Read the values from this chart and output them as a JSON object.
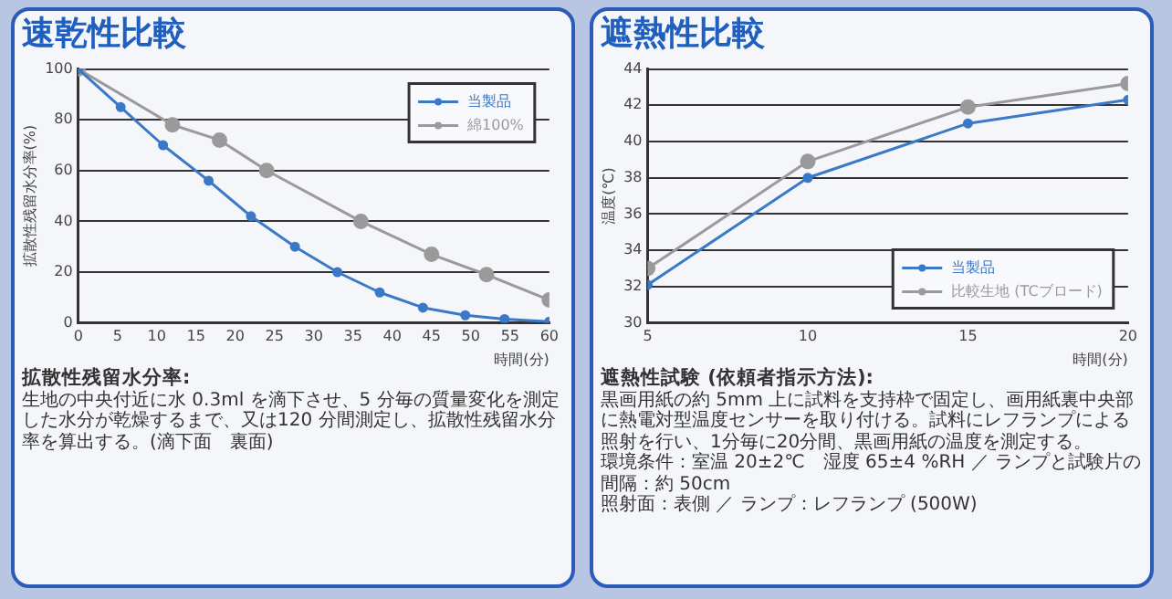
{
  "chart_data": [
    {
      "type": "line",
      "title": "速乾性比較",
      "xlabel": "時間(分)",
      "ylabel": "拡散性残留水分率(%)",
      "xlim": [
        0,
        60
      ],
      "xticks": [
        0,
        5,
        10,
        15,
        20,
        25,
        30,
        35,
        40,
        45,
        50,
        55,
        60
      ],
      "ylim": [
        0,
        100
      ],
      "yticks": [
        0,
        20,
        40,
        60,
        80,
        100
      ],
      "grid": "y",
      "legend": "top right",
      "marker": "circle",
      "series": [
        {
          "name": "当製品",
          "color": "#3a78c8",
          "x": [
            0,
            5.4,
            10.8,
            16.6,
            22,
            27.6,
            33,
            38.4,
            43.9,
            49.3,
            54.3,
            60
          ],
          "values": [
            100,
            85,
            70,
            56,
            42,
            30,
            20,
            12,
            6,
            3,
            1.5,
            0.5
          ]
        },
        {
          "name": "綿100%",
          "color": "#9a9a9a",
          "x": [
            0,
            12,
            18,
            24,
            36,
            45,
            52,
            60
          ],
          "values": [
            100,
            78,
            72,
            60,
            40,
            27,
            19,
            9
          ]
        }
      ],
      "annotations": [
        "拡散性残留水分率:",
        "生地の中央付近に水 0.3ml を滴下させ、5 分毎の質量変化を測定した水分が乾燥するまで、又は120 分間測定し、拡散性残留水分率を算出する。(滴下面　裏面)"
      ]
    },
    {
      "type": "line",
      "title": "遮熱性比較",
      "xlabel": "時間(分)",
      "ylabel": "温度(℃)",
      "xlim": [
        5,
        20
      ],
      "xticks": [
        5,
        10,
        15,
        20
      ],
      "ylim": [
        30,
        44
      ],
      "yticks": [
        30,
        32,
        34,
        36,
        38,
        40,
        42,
        44
      ],
      "grid": "y",
      "legend": "bottom right",
      "marker": "circle",
      "series": [
        {
          "name": "当製品",
          "color": "#3a78c8",
          "x": [
            5,
            10,
            15,
            20
          ],
          "values": [
            32.1,
            38,
            41,
            42.3
          ]
        },
        {
          "name": "比較生地 (TCブロード)",
          "color": "#9a9a9a",
          "x": [
            5,
            10,
            15,
            20
          ],
          "values": [
            33,
            38.9,
            41.9,
            43.2
          ]
        }
      ],
      "annotations": [
        "遮熱性試験 (依頼者指示方法):",
        "黒画用紙の約 5mm 上に試料を支持枠で固定し、画用紙裏中央部に熱電対型温度センサーを取り付ける。試料にレフランプによる照射を行い、1分毎に20分間、黒画用紙の温度を測定する。",
        "環境条件：室温 20±2℃　湿度 65±4 %RH ／ ランプと試験片の間隔：約 50cm",
        "照射面：表側 ／ ランプ：レフランプ (500W)"
      ]
    }
  ]
}
